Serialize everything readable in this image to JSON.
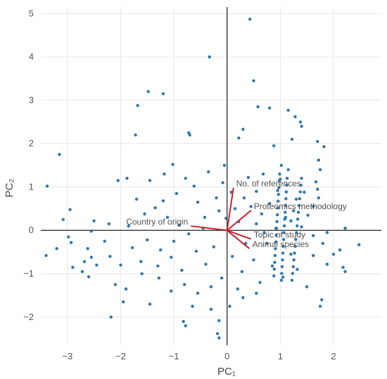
{
  "chart_data": {
    "type": "scatter",
    "title": "",
    "xlabel": "PC₁",
    "ylabel": "PC₂",
    "xlim": [
      -3.5,
      2.9
    ],
    "ylim": [
      -2.65,
      5.15
    ],
    "xticks": [
      -3,
      -2,
      -1,
      0,
      1,
      2
    ],
    "yticks": [
      -2,
      -1,
      0,
      1,
      2,
      3,
      4,
      5
    ],
    "grid": true,
    "legend": "none",
    "point_color": "#2e77ad",
    "vector_color": "#cc1f2f",
    "points": [
      [
        0.43,
        4.87
      ],
      [
        -0.33,
        4.0
      ],
      [
        0.5,
        3.45
      ],
      [
        -1.48,
        3.2
      ],
      [
        -1.2,
        3.15
      ],
      [
        -1.68,
        2.88
      ],
      [
        0.58,
        2.85
      ],
      [
        0.8,
        2.82
      ],
      [
        1.15,
        2.77
      ],
      [
        1.28,
        2.62
      ],
      [
        1.38,
        2.5
      ],
      [
        1.4,
        2.4
      ],
      [
        0.3,
        2.33
      ],
      [
        -0.72,
        2.25
      ],
      [
        -1.72,
        2.2
      ],
      [
        1.22,
        2.1
      ],
      [
        1.7,
        2.05
      ],
      [
        0.88,
        1.95
      ],
      [
        1.82,
        1.93
      ],
      [
        1.72,
        1.62
      ],
      [
        -0.7,
        2.2
      ],
      [
        0.22,
        2.13
      ],
      [
        -3.15,
        1.75
      ],
      [
        1.02,
        1.5
      ],
      [
        -1.02,
        1.52
      ],
      [
        -1.88,
        1.2
      ],
      [
        1.75,
        1.4
      ],
      [
        1.67,
        1.12
      ],
      [
        -3.38,
        1.02
      ],
      [
        -2.95,
        0.48
      ],
      [
        -3.08,
        0.25
      ],
      [
        -2.5,
        0.22
      ],
      [
        -2.22,
        0.15
      ],
      [
        -2.55,
        -0.02
      ],
      [
        -2.98,
        -0.15
      ],
      [
        -2.93,
        -0.28
      ],
      [
        -3.2,
        -0.42
      ],
      [
        -3.4,
        -0.58
      ],
      [
        -2.62,
        -0.42
      ],
      [
        -2.68,
        -0.72
      ],
      [
        -2.55,
        -0.62
      ],
      [
        -2.9,
        -0.85
      ],
      [
        -2.72,
        -0.95
      ],
      [
        -2.45,
        -0.8
      ],
      [
        -2.6,
        -1.07
      ],
      [
        -2.2,
        -0.6
      ],
      [
        -2.0,
        -0.8
      ],
      [
        -2.1,
        -1.25
      ],
      [
        -1.95,
        -1.65
      ],
      [
        -1.45,
        -1.7
      ],
      [
        -2.18,
        -2.0
      ],
      [
        -0.82,
        -2.1
      ],
      [
        -0.78,
        -2.2
      ],
      [
        -0.3,
        -1.82
      ],
      [
        0.05,
        -1.75
      ],
      [
        -0.15,
        -2.08
      ],
      [
        -0.18,
        -2.38
      ],
      [
        -0.15,
        -2.48
      ],
      [
        0.3,
        -1.55
      ],
      [
        0.55,
        -1.45
      ],
      [
        1.75,
        -1.75
      ],
      [
        1.78,
        -1.6
      ],
      [
        2.18,
        -0.85
      ],
      [
        2.22,
        -0.95
      ],
      [
        2.0,
        -0.55
      ],
      [
        2.12,
        -0.45
      ],
      [
        2.48,
        -0.33
      ],
      [
        2.22,
        0.05
      ],
      [
        1.88,
        -0.05
      ],
      [
        1.8,
        -0.3
      ],
      [
        1.62,
        -0.12
      ],
      [
        1.52,
        0.35
      ],
      [
        1.62,
        0.55
      ],
      [
        1.72,
        0.75
      ],
      [
        1.7,
        0.95
      ],
      [
        1.45,
        0.88
      ],
      [
        1.3,
        0.72
      ],
      [
        1.25,
        0.45
      ],
      [
        1.2,
        0.22
      ],
      [
        1.0,
        1.18
      ],
      [
        0.95,
        0.92
      ],
      [
        0.8,
        0.62
      ],
      [
        0.65,
        0.38
      ],
      [
        0.55,
        0.9
      ],
      [
        0.4,
        1.22
      ],
      [
        0.32,
        0.75
      ],
      [
        0.15,
        0.5
      ],
      [
        0.22,
        0.2
      ],
      [
        -0.05,
        1.5
      ],
      [
        -0.08,
        1.1
      ],
      [
        -0.2,
        0.75
      ],
      [
        -0.15,
        0.45
      ],
      [
        -0.42,
        0.3
      ],
      [
        -0.55,
        0.65
      ],
      [
        -0.62,
        1.02
      ],
      [
        -0.78,
        1.2
      ],
      [
        -0.95,
        0.85
      ],
      [
        -1.2,
        0.68
      ],
      [
        -1.45,
        1.15
      ],
      [
        -1.35,
        0.52
      ],
      [
        -1.55,
        0.38
      ],
      [
        -1.7,
        0.72
      ],
      [
        -1.12,
        0.3
      ],
      [
        -0.9,
        0.12
      ],
      [
        -0.72,
        -0.08
      ],
      [
        -1.0,
        -0.25
      ],
      [
        -1.25,
        -0.45
      ],
      [
        -1.5,
        -0.22
      ],
      [
        -1.78,
        -0.4
      ],
      [
        -1.62,
        -0.72
      ],
      [
        -1.3,
        -0.82
      ],
      [
        -1.05,
        -0.62
      ],
      [
        -0.85,
        -0.92
      ],
      [
        -0.58,
        -0.48
      ],
      [
        -0.4,
        -0.78
      ],
      [
        -0.25,
        -0.38
      ],
      [
        -0.1,
        -1.1
      ],
      [
        0.1,
        -0.6
      ],
      [
        0.28,
        -0.95
      ],
      [
        0.5,
        -0.68
      ],
      [
        0.62,
        -1.2
      ],
      [
        0.75,
        -0.3
      ],
      [
        0.85,
        -0.82
      ],
      [
        1.05,
        -1.08
      ],
      [
        1.2,
        -0.55
      ],
      [
        1.32,
        -0.9
      ],
      [
        1.5,
        -1.3
      ],
      [
        1.62,
        -0.58
      ],
      [
        1.88,
        -0.78
      ],
      [
        1.4,
        0.08
      ],
      [
        1.1,
        0.3
      ],
      [
        0.92,
        0.05
      ],
      [
        0.7,
        -0.05
      ],
      [
        0.55,
        0.15
      ],
      [
        0.45,
        0.55
      ],
      [
        -0.3,
        -1.3
      ],
      [
        -0.55,
        -1.45
      ],
      [
        -0.8,
        -1.25
      ],
      [
        -1.05,
        -1.4
      ],
      [
        -1.28,
        -1.1
      ],
      [
        -1.6,
        -1.0
      ],
      [
        -1.9,
        -1.35
      ],
      [
        -0.35,
        1.35
      ],
      [
        -0.02,
        0.28
      ],
      [
        0.08,
        0.88
      ],
      [
        -2.3,
        -0.25
      ],
      [
        -1.85,
        0.1
      ],
      [
        -0.65,
        -1.75
      ],
      [
        0.2,
        -1.35
      ],
      [
        0.68,
        1.3
      ],
      [
        0.35,
        -0.3
      ],
      [
        -0.45,
        0.05
      ],
      [
        1.15,
        1.4
      ],
      [
        -1.18,
        1.3
      ],
      [
        -2.05,
        1.15
      ]
    ],
    "dense_band": {
      "x": [
        1.02,
        1.22,
        0.88
      ],
      "y_from": -1.15,
      "y_to": 1.2,
      "count": 48
    },
    "vectors": [
      {
        "label": "No. of references",
        "x": 0.12,
        "y": 0.98
      },
      {
        "label": "Proteomics methodology",
        "x": 0.45,
        "y": 0.46
      },
      {
        "label": "Country of origin",
        "x": -0.68,
        "y": 0.1
      },
      {
        "label": "Topic of study",
        "x": 0.45,
        "y": -0.2
      },
      {
        "label": "Animal species",
        "x": 0.42,
        "y": -0.42
      }
    ]
  }
}
